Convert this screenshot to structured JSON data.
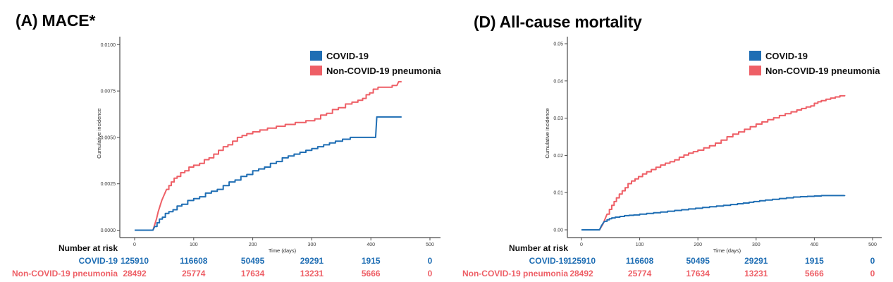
{
  "page": {
    "background": "#ffffff"
  },
  "colors": {
    "covid_blue": "#1f6eb4",
    "pneumonia_red": "#ee5f66",
    "axis": "#4a4a4a",
    "text": "#1a1a1a"
  },
  "chart_data": [
    {
      "type": "line",
      "panel_label": "A",
      "title": "(A) MACE*",
      "xlabel": "Time (days)",
      "ylabel": "Cumulative incidence",
      "xlim": [
        0,
        500
      ],
      "ylim": [
        0,
        0.0104
      ],
      "grid": false,
      "legend_position": "top-right-inside",
      "xticks": [
        0,
        100,
        200,
        300,
        400,
        500
      ],
      "yticks": [
        {
          "value": 0.0,
          "label": "0.0000"
        },
        {
          "value": 0.0025,
          "label": "0.0025"
        },
        {
          "value": 0.005,
          "label": "0.0050"
        },
        {
          "value": 0.0075,
          "label": "0.0075"
        },
        {
          "value": 0.01,
          "label": "0.0100"
        }
      ],
      "series": [
        {
          "name": "COVID-19",
          "color": "#1f6eb4",
          "points": [
            [
              0,
              0
            ],
            [
              31,
              0
            ],
            [
              34,
              0.0002
            ],
            [
              38,
              0.0004
            ],
            [
              42,
              0.0006
            ],
            [
              47,
              0.0007
            ],
            [
              52,
              0.0009
            ],
            [
              58,
              0.001
            ],
            [
              65,
              0.0011
            ],
            [
              72,
              0.0013
            ],
            [
              80,
              0.0014
            ],
            [
              90,
              0.0016
            ],
            [
              100,
              0.0017
            ],
            [
              110,
              0.0018
            ],
            [
              120,
              0.002
            ],
            [
              130,
              0.0021
            ],
            [
              140,
              0.0022
            ],
            [
              150,
              0.0024
            ],
            [
              160,
              0.0026
            ],
            [
              170,
              0.0027
            ],
            [
              180,
              0.0029
            ],
            [
              190,
              0.003
            ],
            [
              200,
              0.0032
            ],
            [
              210,
              0.0033
            ],
            [
              220,
              0.0034
            ],
            [
              230,
              0.0036
            ],
            [
              240,
              0.0037
            ],
            [
              250,
              0.0039
            ],
            [
              260,
              0.004
            ],
            [
              270,
              0.0041
            ],
            [
              280,
              0.0042
            ],
            [
              290,
              0.0043
            ],
            [
              300,
              0.0044
            ],
            [
              310,
              0.0045
            ],
            [
              320,
              0.0046
            ],
            [
              330,
              0.0047
            ],
            [
              340,
              0.0048
            ],
            [
              352,
              0.0049
            ],
            [
              365,
              0.005
            ],
            [
              408,
              0.005
            ],
            [
              410,
              0.0061
            ],
            [
              452,
              0.0061
            ]
          ]
        },
        {
          "name": "Non-COVID-19 pneumonia",
          "color": "#ee5f66",
          "points": [
            [
              0,
              0
            ],
            [
              31,
              0
            ],
            [
              34,
              0.0003
            ],
            [
              37,
              0.0006
            ],
            [
              40,
              0.001
            ],
            [
              43,
              0.0013
            ],
            [
              46,
              0.0016
            ],
            [
              50,
              0.0019
            ],
            [
              54,
              0.0022
            ],
            [
              58,
              0.0024
            ],
            [
              62,
              0.0026
            ],
            [
              67,
              0.0028
            ],
            [
              72,
              0.0029
            ],
            [
              78,
              0.0031
            ],
            [
              85,
              0.0032
            ],
            [
              92,
              0.0034
            ],
            [
              100,
              0.0035
            ],
            [
              110,
              0.0036
            ],
            [
              118,
              0.0038
            ],
            [
              126,
              0.0039
            ],
            [
              134,
              0.0041
            ],
            [
              142,
              0.0043
            ],
            [
              150,
              0.0045
            ],
            [
              158,
              0.0046
            ],
            [
              166,
              0.0048
            ],
            [
              174,
              0.005
            ],
            [
              182,
              0.0051
            ],
            [
              190,
              0.0052
            ],
            [
              200,
              0.0053
            ],
            [
              212,
              0.0054
            ],
            [
              225,
              0.0055
            ],
            [
              240,
              0.0056
            ],
            [
              255,
              0.0057
            ],
            [
              272,
              0.0058
            ],
            [
              290,
              0.0059
            ],
            [
              305,
              0.006
            ],
            [
              315,
              0.0062
            ],
            [
              325,
              0.0063
            ],
            [
              335,
              0.0065
            ],
            [
              345,
              0.0066
            ],
            [
              357,
              0.0068
            ],
            [
              368,
              0.0069
            ],
            [
              378,
              0.007
            ],
            [
              386,
              0.0071
            ],
            [
              392,
              0.0073
            ],
            [
              398,
              0.0074
            ],
            [
              404,
              0.0076
            ],
            [
              412,
              0.0077
            ],
            [
              428,
              0.0077
            ],
            [
              436,
              0.0078
            ],
            [
              444,
              0.0078
            ],
            [
              447,
              0.008
            ],
            [
              452,
              0.008
            ]
          ]
        }
      ],
      "risk_table": {
        "title": "Number at risk",
        "time_points": [
          0,
          100,
          200,
          300,
          400,
          500
        ],
        "rows": [
          {
            "label": "COVID-19",
            "color": "#1f6eb4",
            "values": [
              "125910",
              "116608",
              "50495",
              "29291",
              "1915",
              "0"
            ]
          },
          {
            "label": "Non-COVID-19 pneumonia",
            "color": "#ee5f66",
            "values": [
              "28492",
              "25774",
              "17634",
              "13231",
              "5666",
              "0"
            ]
          }
        ]
      }
    },
    {
      "type": "line",
      "panel_label": "D",
      "title": "(D) All-cause mortality",
      "xlabel": "Time (days)",
      "ylabel": "Cumulative incidence",
      "xlim": [
        0,
        500
      ],
      "ylim": [
        0,
        0.052
      ],
      "grid": false,
      "legend_position": "top-right-inside",
      "xticks": [
        0,
        100,
        200,
        300,
        400,
        500
      ],
      "yticks": [
        {
          "value": 0.0,
          "label": "0.00"
        },
        {
          "value": 0.01,
          "label": "0.01"
        },
        {
          "value": 0.02,
          "label": "0.02"
        },
        {
          "value": 0.03,
          "label": "0.03"
        },
        {
          "value": 0.04,
          "label": "0.04"
        },
        {
          "value": 0.05,
          "label": "0.05"
        }
      ],
      "series": [
        {
          "name": "COVID-19",
          "color": "#1f6eb4",
          "points": [
            [
              0,
              0
            ],
            [
              31,
              0
            ],
            [
              34,
              0.001
            ],
            [
              36,
              0.0015
            ],
            [
              38,
              0.002
            ],
            [
              40,
              0.0023
            ],
            [
              44,
              0.0027
            ],
            [
              48,
              0.003
            ],
            [
              52,
              0.0032
            ],
            [
              58,
              0.0034
            ],
            [
              66,
              0.0036
            ],
            [
              74,
              0.0038
            ],
            [
              82,
              0.0039
            ],
            [
              90,
              0.004
            ],
            [
              100,
              0.0042
            ],
            [
              112,
              0.0044
            ],
            [
              124,
              0.0046
            ],
            [
              136,
              0.0048
            ],
            [
              148,
              0.005
            ],
            [
              160,
              0.0052
            ],
            [
              172,
              0.0054
            ],
            [
              184,
              0.0056
            ],
            [
              196,
              0.0058
            ],
            [
              208,
              0.006
            ],
            [
              220,
              0.0062
            ],
            [
              232,
              0.0064
            ],
            [
              244,
              0.0066
            ],
            [
              256,
              0.0068
            ],
            [
              268,
              0.007
            ],
            [
              278,
              0.0072
            ],
            [
              288,
              0.0074
            ],
            [
              296,
              0.0076
            ],
            [
              306,
              0.0078
            ],
            [
              316,
              0.008
            ],
            [
              328,
              0.0082
            ],
            [
              340,
              0.0084
            ],
            [
              352,
              0.0086
            ],
            [
              364,
              0.0088
            ],
            [
              376,
              0.0089
            ],
            [
              388,
              0.009
            ],
            [
              400,
              0.0091
            ],
            [
              412,
              0.0092
            ],
            [
              452,
              0.0093
            ]
          ]
        },
        {
          "name": "Non-COVID-19 pneumonia",
          "color": "#ee5f66",
          "points": [
            [
              0,
              0
            ],
            [
              31,
              0
            ],
            [
              34,
              0.0008
            ],
            [
              37,
              0.0016
            ],
            [
              40,
              0.0027
            ],
            [
              44,
              0.0042
            ],
            [
              48,
              0.0055
            ],
            [
              52,
              0.0066
            ],
            [
              56,
              0.0076
            ],
            [
              60,
              0.0086
            ],
            [
              65,
              0.0096
            ],
            [
              70,
              0.0105
            ],
            [
              75,
              0.0113
            ],
            [
              80,
              0.0124
            ],
            [
              86,
              0.0131
            ],
            [
              92,
              0.0137
            ],
            [
              98,
              0.0143
            ],
            [
              105,
              0.015
            ],
            [
              112,
              0.0156
            ],
            [
              120,
              0.0162
            ],
            [
              128,
              0.0168
            ],
            [
              136,
              0.0174
            ],
            [
              144,
              0.0179
            ],
            [
              152,
              0.0183
            ],
            [
              160,
              0.0188
            ],
            [
              168,
              0.0195
            ],
            [
              176,
              0.0201
            ],
            [
              184,
              0.0206
            ],
            [
              192,
              0.021
            ],
            [
              200,
              0.0214
            ],
            [
              210,
              0.022
            ],
            [
              220,
              0.0226
            ],
            [
              230,
              0.0233
            ],
            [
              240,
              0.0241
            ],
            [
              250,
              0.025
            ],
            [
              260,
              0.0257
            ],
            [
              270,
              0.0263
            ],
            [
              280,
              0.027
            ],
            [
              290,
              0.0277
            ],
            [
              300,
              0.0284
            ],
            [
              310,
              0.029
            ],
            [
              320,
              0.0296
            ],
            [
              330,
              0.0301
            ],
            [
              340,
              0.0307
            ],
            [
              350,
              0.0312
            ],
            [
              360,
              0.0317
            ],
            [
              370,
              0.0322
            ],
            [
              378,
              0.0326
            ],
            [
              386,
              0.033
            ],
            [
              394,
              0.0333
            ],
            [
              400,
              0.034
            ],
            [
              406,
              0.0344
            ],
            [
              412,
              0.0347
            ],
            [
              420,
              0.0351
            ],
            [
              428,
              0.0354
            ],
            [
              436,
              0.0357
            ],
            [
              444,
              0.036
            ],
            [
              452,
              0.0362
            ]
          ]
        }
      ],
      "risk_table": {
        "title": "Number at risk",
        "time_points": [
          0,
          100,
          200,
          300,
          400,
          500
        ],
        "rows": [
          {
            "label": "COVID-19",
            "color": "#1f6eb4",
            "values": [
              "125910",
              "116608",
              "50495",
              "29291",
              "1915",
              "0"
            ]
          },
          {
            "label": "Non-COVID-19 pneumonia",
            "color": "#ee5f66",
            "values": [
              "28492",
              "25774",
              "17634",
              "13231",
              "5666",
              "0"
            ]
          }
        ]
      }
    }
  ]
}
